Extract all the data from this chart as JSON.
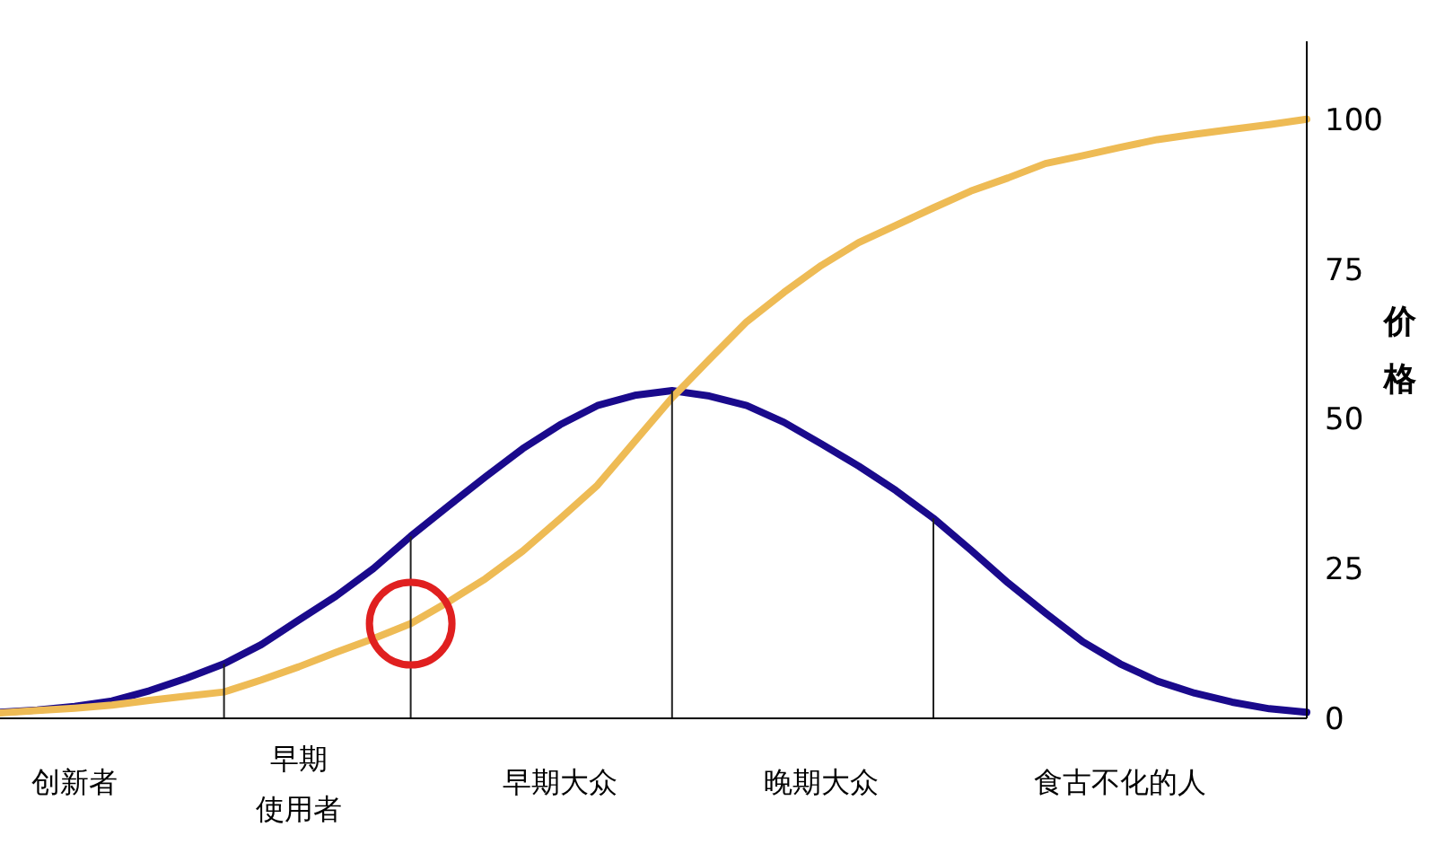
{
  "chart_data": {
    "type": "line",
    "ylabel": "价格",
    "ylim": [
      0,
      113
    ],
    "yticks": [
      0,
      25,
      50,
      75,
      100
    ],
    "grid": false,
    "marker": "none",
    "line_style": "solid",
    "categories": [
      null,
      null,
      "创新者",
      null,
      null,
      null,
      null,
      null,
      "早期使用者",
      null,
      null,
      null,
      null,
      null,
      null,
      "早期大众",
      null,
      null,
      null,
      null,
      null,
      null,
      "晚期大众",
      null,
      null,
      null,
      null,
      null,
      null,
      null,
      "食古不化的人",
      null,
      null,
      null,
      null,
      null
    ],
    "series": [
      {
        "color": "#1a0a8c",
        "values": [
          1.0,
          1.4,
          2.0,
          2.9,
          4.6,
          6.7,
          9.1,
          12.3,
          16.4,
          20.4,
          25.0,
          30.4,
          35.4,
          40.3,
          45.0,
          49.0,
          52.2,
          53.9,
          54.7,
          53.8,
          52.2,
          49.4,
          45.8,
          42.1,
          38.0,
          33.4,
          28.1,
          22.6,
          17.6,
          12.8,
          9.1,
          6.2,
          4.2,
          2.7,
          1.6,
          1.0
        ]
      },
      {
        "color": "#eebb55",
        "values": [
          0.9,
          1.3,
          1.7,
          2.2,
          3.0,
          3.7,
          4.4,
          6.4,
          8.6,
          11.0,
          13.3,
          15.8,
          19.4,
          23.3,
          27.9,
          33.3,
          38.9,
          46.2,
          53.5,
          59.9,
          66.2,
          71.1,
          75.6,
          79.4,
          82.3,
          85.2,
          88.0,
          90.2,
          92.6,
          93.9,
          95.3,
          96.6,
          97.5,
          98.3,
          99.1,
          100
        ]
      },
      {
        "type": "bar",
        "color": "#222222",
        "values": [
          null,
          null,
          null,
          null,
          null,
          null,
          9.1,
          null,
          null,
          null,
          null,
          30.4,
          null,
          null,
          null,
          null,
          null,
          null,
          54.7,
          null,
          null,
          null,
          null,
          null,
          null,
          33.4,
          null,
          null,
          null,
          null,
          null,
          null,
          null,
          null,
          null,
          null
        ]
      }
    ]
  }
}
